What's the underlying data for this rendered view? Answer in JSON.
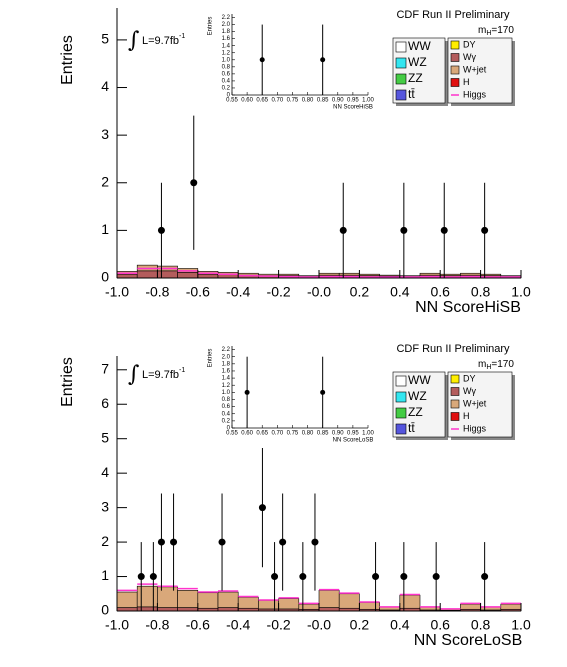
{
  "chart_data": [
    {
      "type": "histogram",
      "title": "CDF Run II Preliminary",
      "mass_label": {
        "text": "m",
        "sub": "H",
        "rest": "=170"
      },
      "lumi": {
        "integral": "∫",
        "text": "L=9.7fb",
        "sup": "-1"
      },
      "x_label": "NN ScoreHiSB",
      "y_label": "Entries",
      "xlim": [
        -1,
        1
      ],
      "ylim": [
        0,
        5.67
      ],
      "xticks": [
        {
          "value": -1,
          "label": "-1.0"
        },
        {
          "value": -0.8,
          "label": "-0.8"
        },
        {
          "value": -0.6,
          "label": "-0.6"
        },
        {
          "value": -0.4,
          "label": "-0.4"
        },
        {
          "value": -0.2,
          "label": "-0.2"
        },
        {
          "value": 0,
          "label": "-0.0"
        },
        {
          "value": 0.2,
          "label": "0.2"
        },
        {
          "value": 0.4,
          "label": "0.4"
        },
        {
          "value": 0.6,
          "label": "0.6"
        },
        {
          "value": 0.8,
          "label": "0.8"
        },
        {
          "value": 1,
          "label": "1.0"
        }
      ],
      "yticks": [
        0,
        1,
        2,
        3,
        4,
        5
      ],
      "bins": [
        -1,
        -0.9,
        -0.8,
        -0.7,
        -0.6,
        -0.5,
        -0.4,
        -0.3,
        -0.2,
        -0.1,
        0,
        0.1,
        0.2,
        0.3,
        0.4,
        0.5,
        0.6,
        0.7,
        0.8,
        0.9,
        1
      ],
      "series": [
        {
          "name": "WW",
          "color": "#ffffff"
        },
        {
          "name": "WZ",
          "color": "#33e6f0"
        },
        {
          "name": "ZZ",
          "color": "#44cc44"
        },
        {
          "name": "tt̄",
          "color": "#5555dd"
        },
        {
          "name": "DY",
          "color": "#ffee00"
        },
        {
          "name": "Wγ",
          "color": "#b35c5c",
          "values": [
            0.08,
            0.15,
            0.15,
            0.12,
            0.08,
            0.07,
            0.06,
            0.05,
            0.05,
            0.03,
            0.06,
            0.06,
            0.05,
            0.04,
            0.03,
            0.06,
            0.05,
            0.06,
            0.05,
            0.03
          ]
        },
        {
          "name": "W+jet",
          "color": "#d9a87a",
          "values": [
            0.06,
            0.12,
            0.1,
            0.08,
            0.06,
            0.05,
            0.04,
            0.03,
            0.03,
            0.02,
            0.04,
            0.04,
            0.03,
            0.02,
            0.02,
            0.04,
            0.03,
            0.04,
            0.03,
            0.02
          ]
        },
        {
          "name": "H",
          "color": "#e01010"
        },
        {
          "name": "Higgs",
          "color": "#ff33cc",
          "style": "line",
          "values": [
            0.1,
            0.2,
            0.2,
            0.15,
            0.1,
            0.08,
            0.05,
            0.04,
            0.03,
            0.02,
            0.03,
            0.03,
            0.02,
            0.02,
            0.02,
            0.03,
            0.02,
            0.03,
            0.02,
            0.02
          ]
        }
      ],
      "data": {
        "x": [
          -0.78,
          -0.62,
          0.12,
          0.42,
          0.62,
          0.82
        ],
        "values": [
          1,
          2,
          1,
          1,
          1,
          1
        ],
        "errors": [
          1,
          1.41,
          1,
          1,
          1,
          1
        ]
      },
      "inset": {
        "x_label": "NN ScoreHiSB",
        "y_label": "Entries",
        "xlim": [
          0.55,
          1.0
        ],
        "ylim": [
          0,
          2.3
        ],
        "xticks": [
          {
            "value": 0.55,
            "label": "0.55"
          },
          {
            "value": 0.6,
            "label": "0.60"
          },
          {
            "value": 0.65,
            "label": "0.65"
          },
          {
            "value": 0.7,
            "label": "0.70"
          },
          {
            "value": 0.75,
            "label": "0.75"
          },
          {
            "value": 0.8,
            "label": "0.80"
          },
          {
            "value": 0.85,
            "label": "0.85"
          },
          {
            "value": 0.9,
            "label": "0.90"
          },
          {
            "value": 0.95,
            "label": "0.95"
          },
          {
            "value": 1.0,
            "label": "1.00"
          }
        ],
        "yticks": [
          0,
          0.2,
          0.4,
          0.6,
          0.8,
          {
            "value": 1,
            "label": "1.0"
          },
          1.2,
          1.4,
          1.6,
          1.8,
          {
            "value": 2,
            "label": "2.0"
          },
          2.2
        ],
        "data": {
          "x": [
            0.65,
            0.85
          ],
          "values": [
            1,
            1
          ],
          "errors": [
            1,
            1
          ]
        }
      }
    },
    {
      "type": "histogram",
      "title": "CDF Run II Preliminary",
      "mass_label": {
        "text": "m",
        "sub": "H",
        "rest": "=170"
      },
      "lumi": {
        "integral": "∫",
        "text": "L=9.7fb",
        "sup": "-1"
      },
      "x_label": "NN ScoreLoSB",
      "y_label": "Entries",
      "xlim": [
        -1,
        1
      ],
      "ylim": [
        0,
        7.4
      ],
      "xticks": [
        {
          "value": -1,
          "label": "-1.0"
        },
        {
          "value": -0.8,
          "label": "-0.8"
        },
        {
          "value": -0.6,
          "label": "-0.6"
        },
        {
          "value": -0.4,
          "label": "-0.4"
        },
        {
          "value": -0.2,
          "label": "-0.2"
        },
        {
          "value": 0,
          "label": "-0.0"
        },
        {
          "value": 0.2,
          "label": "0.2"
        },
        {
          "value": 0.4,
          "label": "0.4"
        },
        {
          "value": 0.6,
          "label": "0.6"
        },
        {
          "value": 0.8,
          "label": "0.8"
        },
        {
          "value": 1,
          "label": "1.0"
        }
      ],
      "yticks": [
        0,
        1,
        2,
        3,
        4,
        5,
        6,
        7
      ],
      "bins": [
        -1,
        -0.9,
        -0.8,
        -0.7,
        -0.6,
        -0.5,
        -0.4,
        -0.3,
        -0.2,
        -0.1,
        0,
        0.1,
        0.2,
        0.3,
        0.4,
        0.5,
        0.6,
        0.7,
        0.8,
        0.9,
        1
      ],
      "series": [
        {
          "name": "WW",
          "color": "#ffffff"
        },
        {
          "name": "WZ",
          "color": "#33e6f0"
        },
        {
          "name": "ZZ",
          "color": "#44cc44"
        },
        {
          "name": "tt̄",
          "color": "#5555dd"
        },
        {
          "name": "DY",
          "color": "#ffee00"
        },
        {
          "name": "Wγ",
          "color": "#b35c5c",
          "values": [
            0.1,
            0.12,
            0.1,
            0.1,
            0.08,
            0.1,
            0.08,
            0.06,
            0.06,
            0.05,
            0.1,
            0.08,
            0.05,
            0.03,
            0.08,
            0.03,
            0.02,
            0.05,
            0.03,
            0.05
          ]
        },
        {
          "name": "W+jet",
          "color": "#d9a87a",
          "values": [
            0.45,
            0.6,
            0.6,
            0.5,
            0.45,
            0.45,
            0.32,
            0.25,
            0.3,
            0.15,
            0.5,
            0.42,
            0.2,
            0.08,
            0.38,
            0.08,
            0.03,
            0.15,
            0.08,
            0.15
          ]
        },
        {
          "name": "H",
          "color": "#e01010"
        },
        {
          "name": "Higgs",
          "color": "#ff33cc",
          "style": "line",
          "values": [
            0.6,
            0.78,
            0.72,
            0.65,
            0.55,
            0.58,
            0.42,
            0.32,
            0.38,
            0.22,
            0.62,
            0.52,
            0.26,
            0.12,
            0.48,
            0.12,
            0.06,
            0.22,
            0.12,
            0.22
          ]
        }
      ],
      "data": {
        "x": [
          -0.88,
          -0.82,
          -0.78,
          -0.72,
          -0.48,
          -0.28,
          -0.22,
          -0.18,
          -0.08,
          -0.02,
          0.28,
          0.42,
          0.58,
          0.82
        ],
        "values": [
          1,
          1,
          2,
          2,
          2,
          3,
          1,
          2,
          1,
          2,
          1,
          1,
          1,
          1
        ],
        "errors": [
          1,
          1,
          1.41,
          1.41,
          1.41,
          1.73,
          1,
          1.41,
          1,
          1.41,
          1,
          1,
          1,
          1
        ]
      },
      "inset": {
        "x_label": "NN ScoreLoSB",
        "y_label": "Entries",
        "xlim": [
          0.55,
          1.0
        ],
        "ylim": [
          0,
          2.3
        ],
        "xticks": [
          {
            "value": 0.55,
            "label": "0.55"
          },
          {
            "value": 0.6,
            "label": "0.60"
          },
          {
            "value": 0.65,
            "label": "0.65"
          },
          {
            "value": 0.7,
            "label": "0.70"
          },
          {
            "value": 0.75,
            "label": "0.75"
          },
          {
            "value": 0.8,
            "label": "0.80"
          },
          {
            "value": 0.85,
            "label": "0.85"
          },
          {
            "value": 0.9,
            "label": "0.90"
          },
          {
            "value": 0.95,
            "label": "0.95"
          },
          {
            "value": 1.0,
            "label": "1.00"
          }
        ],
        "yticks": [
          0,
          0.2,
          0.4,
          0.6,
          0.8,
          {
            "value": 1,
            "label": "1.0"
          },
          1.2,
          1.4,
          1.6,
          1.8,
          {
            "value": 2,
            "label": "2.0"
          },
          2.2
        ],
        "data": {
          "x": [
            0.6,
            0.85
          ],
          "values": [
            1,
            1
          ],
          "errors": [
            1,
            1
          ]
        }
      }
    }
  ]
}
